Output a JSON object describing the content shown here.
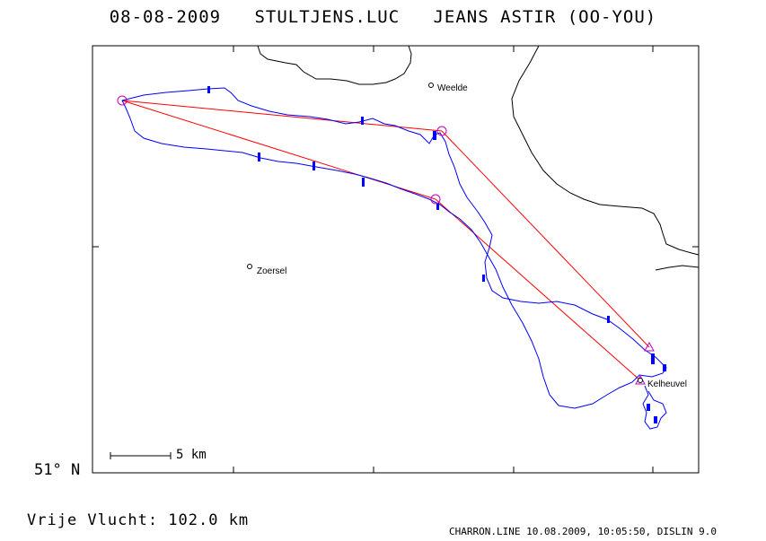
{
  "title": "08-08-2009   STULTJENS.LUC   JEANS ASTIR (OO-YOU)",
  "latitude_label": "51° N",
  "scale": {
    "label": "5 km"
  },
  "places": [
    {
      "name": "Weelde"
    },
    {
      "name": "Zoersel"
    },
    {
      "name": "Kelheuvel"
    }
  ],
  "footer": {
    "distance": "Vrije Vlucht:  102.0 km",
    "credit": "CHARRON.LINE 10.08.2009, 10:05:50, DISLIN 9.0"
  },
  "colors": {
    "track": "#0000ff",
    "task": "#ff0000",
    "turnpoint": "#c000c0",
    "border": "#000000"
  }
}
